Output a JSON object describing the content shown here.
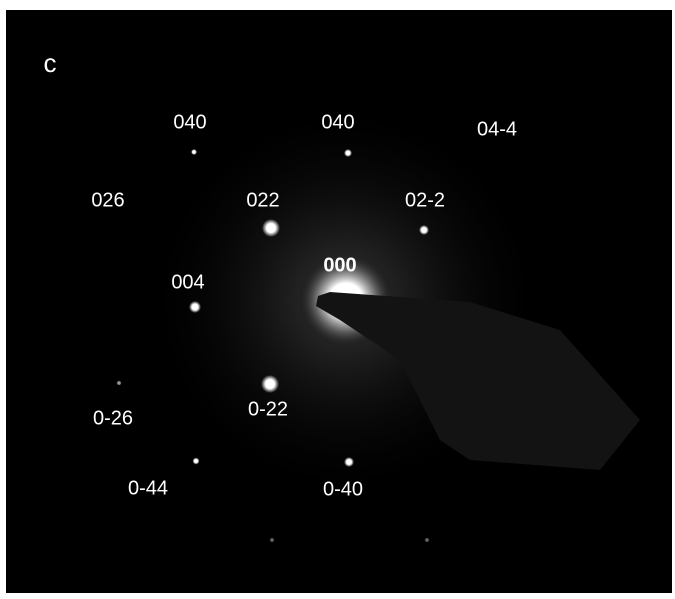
{
  "panel_label": "c",
  "spot_labels": [
    "040",
    "040",
    "04-4",
    "026",
    "022",
    "02-2",
    "000",
    "004",
    "0-26",
    "0-22",
    "0-44",
    "0-40"
  ]
}
